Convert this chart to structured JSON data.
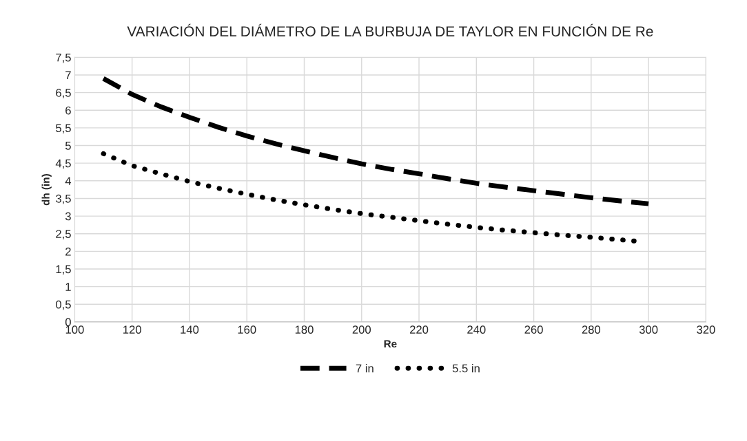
{
  "chart_data": {
    "type": "line",
    "title": "VARIACIÓN DEL DIÁMETRO DE LA BURBUJA DE TAYLOR EN FUNCIÓN DE Re",
    "xlabel": "Re",
    "ylabel": "dh (in)",
    "xlim": [
      100,
      320
    ],
    "xticks": [
      100,
      120,
      140,
      160,
      180,
      200,
      220,
      240,
      260,
      280,
      300,
      320
    ],
    "ylim": [
      0,
      7.5
    ],
    "yticks": [
      0,
      {
        "value": 0.5,
        "label": "0,5"
      },
      1,
      {
        "value": 1.5,
        "label": "1,5"
      },
      2,
      {
        "value": 2.5,
        "label": "2,5"
      },
      3,
      {
        "value": 3.5,
        "label": "3,5"
      },
      4,
      {
        "value": 4.5,
        "label": "4,5"
      },
      5,
      {
        "value": 5.5,
        "label": "5,5"
      },
      6,
      {
        "value": 6.5,
        "label": "6,5"
      },
      7,
      {
        "value": 7.5,
        "label": "7,5"
      }
    ],
    "grid": true,
    "legend": "bottom",
    "marker": "none",
    "series": [
      {
        "name": "7 in",
        "color": "#000000",
        "line_style": "dashed",
        "x": [
          110,
          120,
          130,
          140,
          150,
          160,
          170,
          180,
          190,
          200,
          210,
          220,
          230,
          240,
          250,
          260,
          270,
          280,
          290,
          300
        ],
        "values": [
          6.9,
          6.45,
          6.1,
          5.8,
          5.52,
          5.27,
          5.05,
          4.85,
          4.66,
          4.48,
          4.33,
          4.2,
          4.06,
          3.93,
          3.82,
          3.72,
          3.62,
          3.52,
          3.43,
          3.35
        ]
      },
      {
        "name": "5.5 in",
        "color": "#000000",
        "line_style": "dotted",
        "x": [
          110,
          120,
          130,
          140,
          150,
          160,
          170,
          180,
          190,
          200,
          210,
          220,
          230,
          240,
          250,
          260,
          270,
          280,
          290,
          297
        ],
        "values": [
          4.77,
          4.43,
          4.2,
          3.98,
          3.79,
          3.62,
          3.46,
          3.32,
          3.19,
          3.07,
          2.97,
          2.87,
          2.77,
          2.68,
          2.6,
          2.53,
          2.46,
          2.4,
          2.33,
          2.28
        ]
      }
    ]
  }
}
